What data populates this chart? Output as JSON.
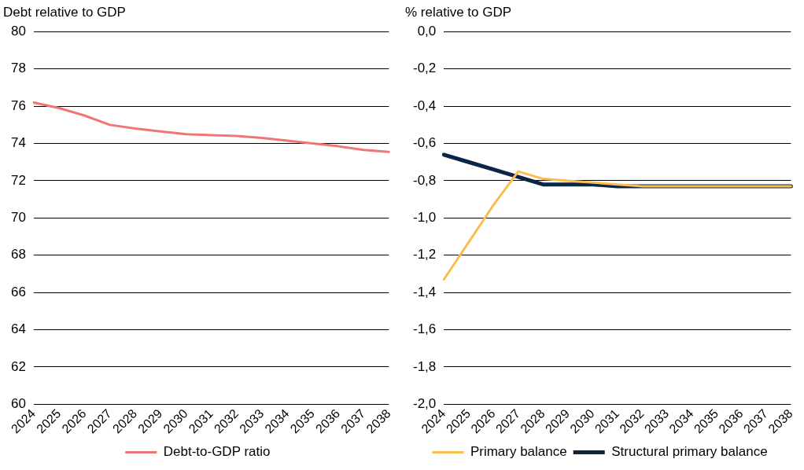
{
  "chart_data": [
    {
      "type": "line",
      "ylabel": "Debt relative to GDP",
      "categories": [
        "2024",
        "2025",
        "2026",
        "2027",
        "2028",
        "2029",
        "2030",
        "2031",
        "2032",
        "2033",
        "2034",
        "2035",
        "2036",
        "2037",
        "2038"
      ],
      "series": [
        {
          "name": "Debt-to-GDP ratio",
          "color": "#f07575",
          "values": [
            76.2,
            75.9,
            75.5,
            75.0,
            74.8,
            74.65,
            74.5,
            74.45,
            74.4,
            74.3,
            74.15,
            74.0,
            73.85,
            73.65,
            73.55
          ]
        }
      ],
      "ylim": [
        60,
        80
      ],
      "yticks": [
        60,
        62,
        64,
        66,
        68,
        70,
        72,
        74,
        76,
        78,
        80
      ],
      "grid": "y",
      "legend": "bottom",
      "marker": "none"
    },
    {
      "type": "line",
      "ylabel": "% relative to GDP",
      "categories": [
        "2024",
        "2025",
        "2026",
        "2027",
        "2028",
        "2029",
        "2030",
        "2031",
        "2032",
        "2033",
        "2034",
        "2035",
        "2036",
        "2037",
        "2038"
      ],
      "series": [
        {
          "name": "Structural primary balance",
          "color": "#0b2545",
          "values": [
            -0.66,
            -0.7,
            -0.74,
            -0.78,
            -0.82,
            -0.82,
            -0.82,
            -0.83,
            -0.83,
            -0.83,
            -0.83,
            -0.83,
            -0.83,
            -0.83,
            -0.83
          ]
        },
        {
          "name": "Primary balance",
          "color": "#fbbd4f",
          "values": [
            -1.33,
            -1.13,
            -0.93,
            -0.75,
            -0.79,
            -0.8,
            -0.81,
            -0.82,
            -0.83,
            -0.83,
            -0.83,
            -0.83,
            -0.83,
            -0.83,
            -0.83
          ]
        }
      ],
      "ylim": [
        -2.0,
        0.0
      ],
      "yticks": [
        {
          "value": -2.0,
          "label": "-2,0"
        },
        {
          "value": -1.8,
          "label": "-1,8"
        },
        {
          "value": -1.6,
          "label": "-1,6"
        },
        {
          "value": -1.4,
          "label": "-1,4"
        },
        {
          "value": -1.2,
          "label": "-1,2"
        },
        {
          "value": -1.0,
          "label": "-1,0"
        },
        {
          "value": -0.8,
          "label": "-0,8"
        },
        {
          "value": -0.6,
          "label": "-0,6"
        },
        {
          "value": -0.4,
          "label": "-0,4"
        },
        {
          "value": -0.2,
          "label": "-0,2"
        },
        {
          "value": 0.0,
          "label": "0,0"
        }
      ],
      "grid": "y",
      "legend": "bottom",
      "marker": "none"
    }
  ]
}
